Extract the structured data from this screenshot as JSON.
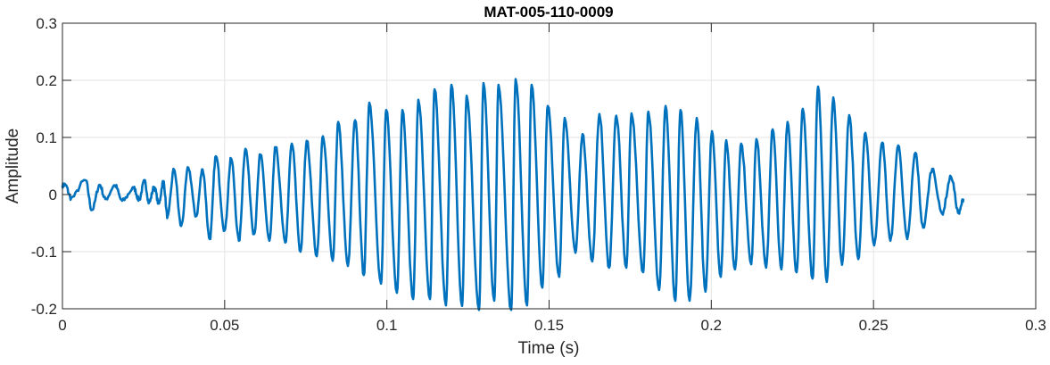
{
  "chart_data": {
    "type": "line",
    "title": "MAT-005-110-0009",
    "xlabel": "Time (s)",
    "ylabel": "Amplitude",
    "xlim": [
      0,
      0.3
    ],
    "ylim": [
      -0.2,
      0.3
    ],
    "xticks": [
      0,
      0.05,
      0.1,
      0.15,
      0.2,
      0.25,
      0.3
    ],
    "xtick_labels": [
      "0",
      "0.05",
      "0.1",
      "0.15",
      "0.2",
      "0.25",
      "0.3"
    ],
    "yticks": [
      0.3,
      0.2,
      0.1,
      0,
      -0.1,
      -0.2
    ],
    "ytick_labels": [
      "0.3",
      "0.2",
      "0.1",
      "0",
      "-0.1",
      "-0.2"
    ],
    "grid": true,
    "series": [
      {
        "name": "signal",
        "color": "#0072BD",
        "note_points": "extrema (time s, amplitude)",
        "points": [
          [
            0,
            0.016
          ],
          [
            0.0008,
            0.017
          ],
          [
            0.0027,
            -0.006
          ],
          [
            0.0071,
            0.025
          ],
          [
            0.0091,
            -0.027
          ],
          [
            0.0115,
            0.017
          ],
          [
            0.0132,
            -0.008
          ],
          [
            0.0162,
            0.016
          ],
          [
            0.0184,
            -0.011
          ],
          [
            0.022,
            0.011
          ],
          [
            0.0236,
            -0.009
          ],
          [
            0.0253,
            0.023
          ],
          [
            0.0267,
            -0.014
          ],
          [
            0.0283,
            0.013
          ],
          [
            0.0297,
            -0.016
          ],
          [
            0.0311,
            0.023
          ],
          [
            0.0324,
            -0.039
          ],
          [
            0.0344,
            0.044
          ],
          [
            0.0366,
            -0.055
          ],
          [
            0.0388,
            0.047
          ],
          [
            0.0412,
            -0.038
          ],
          [
            0.0432,
            0.044
          ],
          [
            0.0454,
            -0.078
          ],
          [
            0.0473,
            0.067
          ],
          [
            0.05,
            -0.063
          ],
          [
            0.052,
            0.063
          ],
          [
            0.0544,
            -0.081
          ],
          [
            0.0564,
            0.08
          ],
          [
            0.0591,
            -0.069
          ],
          [
            0.061,
            0.07
          ],
          [
            0.0638,
            -0.081
          ],
          [
            0.0657,
            0.083
          ],
          [
            0.0687,
            -0.084
          ],
          [
            0.0707,
            0.089
          ],
          [
            0.0734,
            -0.1
          ],
          [
            0.0753,
            0.094
          ],
          [
            0.0784,
            -0.108
          ],
          [
            0.0803,
            0.102
          ],
          [
            0.0833,
            -0.116
          ],
          [
            0.085,
            0.127
          ],
          [
            0.088,
            -0.125
          ],
          [
            0.0902,
            0.13
          ],
          [
            0.0929,
            -0.141
          ],
          [
            0.0946,
            0.161
          ],
          [
            0.0982,
            -0.156
          ],
          [
            0.0998,
            0.148
          ],
          [
            0.1031,
            -0.172
          ],
          [
            0.1048,
            0.148
          ],
          [
            0.1081,
            -0.183
          ],
          [
            0.1097,
            0.166
          ],
          [
            0.1133,
            -0.183
          ],
          [
            0.1147,
            0.184
          ],
          [
            0.1182,
            -0.194
          ],
          [
            0.1199,
            0.192
          ],
          [
            0.1232,
            -0.195
          ],
          [
            0.1246,
            0.173
          ],
          [
            0.1284,
            -0.202
          ],
          [
            0.1298,
            0.195
          ],
          [
            0.1331,
            -0.186
          ],
          [
            0.1344,
            0.192
          ],
          [
            0.1383,
            -0.202
          ],
          [
            0.1397,
            0.202
          ],
          [
            0.1432,
            -0.194
          ],
          [
            0.1446,
            0.192
          ],
          [
            0.1479,
            -0.163
          ],
          [
            0.1496,
            0.155
          ],
          [
            0.1531,
            -0.144
          ],
          [
            0.1548,
            0.134
          ],
          [
            0.1581,
            -0.102
          ],
          [
            0.1603,
            0.106
          ],
          [
            0.1633,
            -0.117
          ],
          [
            0.1655,
            0.141
          ],
          [
            0.1685,
            -0.128
          ],
          [
            0.1707,
            0.138
          ],
          [
            0.1738,
            -0.128
          ],
          [
            0.1754,
            0.142
          ],
          [
            0.179,
            -0.136
          ],
          [
            0.1806,
            0.145
          ],
          [
            0.1839,
            -0.167
          ],
          [
            0.1859,
            0.155
          ],
          [
            0.1889,
            -0.186
          ],
          [
            0.1905,
            0.148
          ],
          [
            0.1933,
            -0.186
          ],
          [
            0.1955,
            0.134
          ],
          [
            0.1982,
            -0.17
          ],
          [
            0.2002,
            0.111
          ],
          [
            0.2029,
            -0.144
          ],
          [
            0.2046,
            0.095
          ],
          [
            0.2073,
            -0.131
          ],
          [
            0.2092,
            0.089
          ],
          [
            0.2123,
            -0.122
          ],
          [
            0.2139,
            0.097
          ],
          [
            0.2169,
            -0.128
          ],
          [
            0.2189,
            0.114
          ],
          [
            0.2216,
            -0.131
          ],
          [
            0.2235,
            0.127
          ],
          [
            0.2263,
            -0.136
          ],
          [
            0.2282,
            0.15
          ],
          [
            0.2312,
            -0.147
          ],
          [
            0.2329,
            0.189
          ],
          [
            0.2356,
            -0.153
          ],
          [
            0.2376,
            0.17
          ],
          [
            0.2403,
            -0.123
          ],
          [
            0.2425,
            0.139
          ],
          [
            0.2453,
            -0.113
          ],
          [
            0.2475,
            0.108
          ],
          [
            0.2502,
            -0.089
          ],
          [
            0.2527,
            0.091
          ],
          [
            0.2552,
            -0.081
          ],
          [
            0.2576,
            0.086
          ],
          [
            0.2604,
            -0.078
          ],
          [
            0.2629,
            0.073
          ],
          [
            0.2653,
            -0.058
          ],
          [
            0.2681,
            0.045
          ],
          [
            0.2711,
            -0.033
          ],
          [
            0.2739,
            0.031
          ],
          [
            0.2763,
            -0.033
          ],
          [
            0.2777,
            -0.008
          ]
        ]
      }
    ]
  }
}
